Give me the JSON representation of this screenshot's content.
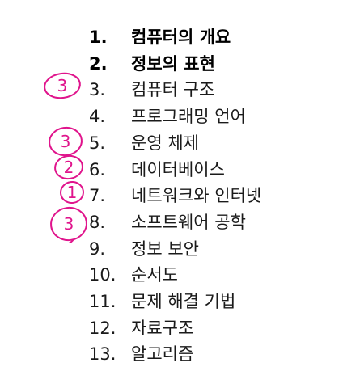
{
  "toc": {
    "items": [
      {
        "num": "1.",
        "title": "컴퓨터의 개요",
        "bold": true
      },
      {
        "num": "2.",
        "title": "정보의 표현",
        "bold": true
      },
      {
        "num": "3.",
        "title": "컴퓨터 구조",
        "bold": false
      },
      {
        "num": "4.",
        "title": "프로그래밍 언어",
        "bold": false
      },
      {
        "num": "5.",
        "title": "운영 체제",
        "bold": false
      },
      {
        "num": "6.",
        "title": "데이터베이스",
        "bold": false
      },
      {
        "num": "7.",
        "title": "네트워크와 인터넷",
        "bold": false
      },
      {
        "num": "8.",
        "title": "소프트웨어 공학",
        "bold": false
      },
      {
        "num": "9.",
        "title": "정보 보안",
        "bold": false
      },
      {
        "num": "10.",
        "title": "순서도",
        "bold": false
      },
      {
        "num": "11.",
        "title": "문제 해결 기법",
        "bold": false
      },
      {
        "num": "12.",
        "title": "자료구조",
        "bold": false
      },
      {
        "num": "13.",
        "title": "알고리즘",
        "bold": false
      }
    ]
  },
  "annotations": {
    "color": "#e0148c",
    "marks": [
      {
        "item": "3.",
        "digit": "3"
      },
      {
        "item": "5.",
        "digit": "3"
      },
      {
        "item": "6.",
        "digit": "2"
      },
      {
        "item": "7.",
        "digit": "1"
      },
      {
        "item": "8.",
        "digit": "3"
      }
    ]
  }
}
